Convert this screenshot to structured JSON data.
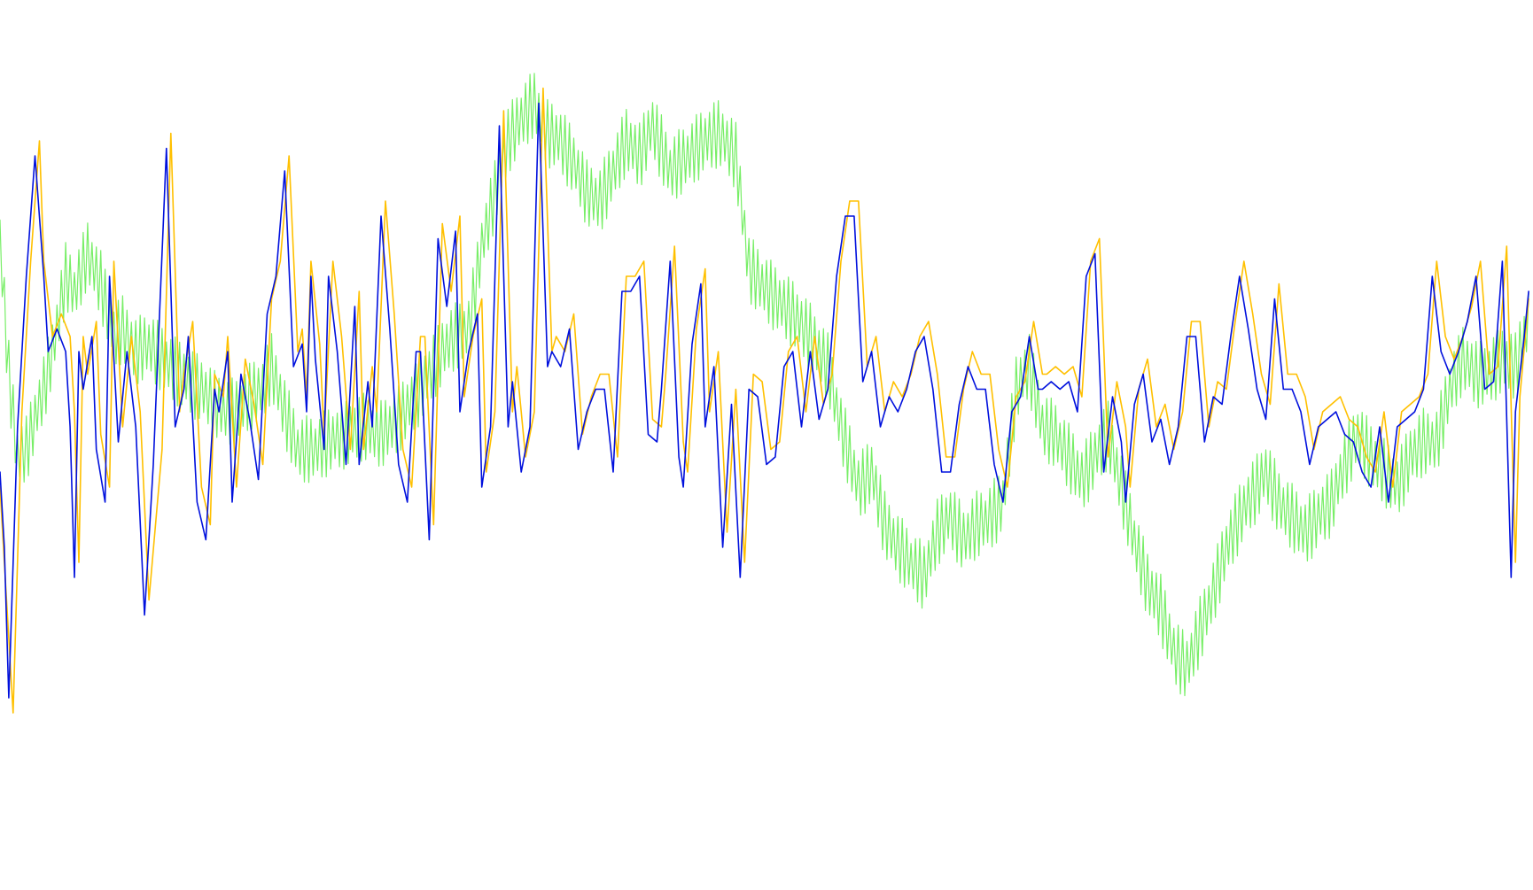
{
  "chart_data": {
    "type": "line",
    "title": "",
    "xlabel": "",
    "ylabel": "",
    "grid": false,
    "legend": "none",
    "xlim": [
      0,
      350
    ],
    "ylim": [
      0,
      100
    ],
    "series": [
      {
        "color": "#77ee66",
        "stroke_width": 1.2,
        "noise": 4.5,
        "x": [
          0,
          2,
          4,
          6,
          8,
          10,
          12,
          15,
          17,
          20,
          23,
          26,
          28,
          31,
          34,
          37,
          39,
          41,
          43,
          46,
          49,
          52,
          54,
          57,
          60,
          62,
          65,
          68,
          72,
          75,
          79,
          83,
          87,
          91,
          95,
          99,
          102,
          104,
          107,
          110,
          113,
          116,
          119,
          122,
          125,
          128,
          131,
          134,
          137,
          140,
          143,
          146,
          149,
          153,
          157,
          161,
          164,
          168,
          171,
          174,
          177,
          181,
          185,
          189,
          192,
          196,
          199,
          202,
          205,
          208,
          211,
          214,
          217,
          220,
          223,
          226,
          229,
          232,
          235,
          238,
          241,
          244,
          247,
          250,
          253,
          256,
          259,
          262,
          265,
          268,
          271,
          274,
          277,
          280,
          283,
          286,
          289,
          292,
          295,
          298,
          301,
          304,
          307,
          310,
          313,
          316,
          319,
          322,
          325,
          328,
          331,
          334,
          337,
          340,
          343,
          346,
          349
        ],
        "y": [
          73,
          55,
          44,
          45,
          49,
          53,
          58,
          68,
          66,
          71,
          67,
          60,
          61,
          58,
          59,
          57,
          56,
          55,
          54,
          53,
          51,
          50,
          50,
          52,
          53,
          56,
          50,
          45,
          45,
          46,
          47,
          48,
          47,
          49,
          52,
          56,
          59,
          60,
          61,
          72,
          79,
          86,
          89,
          91,
          87,
          86,
          83,
          79,
          78,
          82,
          86,
          84,
          88,
          82,
          84,
          86,
          87,
          84,
          69,
          67,
          65,
          63,
          60,
          56,
          48,
          40,
          42,
          35,
          32,
          30,
          28,
          34,
          36,
          33,
          35,
          36,
          38,
          53,
          56,
          48,
          47,
          44,
          41,
          44,
          47,
          40,
          33,
          27,
          24,
          18,
          16,
          21,
          26,
          32,
          36,
          39,
          42,
          38,
          36,
          34,
          36,
          38,
          43,
          47,
          44,
          42,
          40,
          44,
          46,
          46,
          53,
          57,
          55,
          55,
          57,
          56,
          62
        ]
      },
      {
        "color": "#ffc000",
        "stroke_width": 1.6,
        "noise": 0,
        "x": [
          0,
          1,
          3,
          5,
          7,
          9,
          10,
          12,
          14,
          16,
          17,
          18,
          19,
          20,
          22,
          23,
          25,
          26,
          28,
          30,
          32,
          34,
          37,
          39,
          41,
          42,
          44,
          46,
          48,
          49,
          51,
          52,
          54,
          56,
          58,
          60,
          62,
          64,
          66,
          68,
          69,
          70,
          71,
          73,
          74,
          76,
          78,
          80,
          82,
          83,
          85,
          86,
          88,
          90,
          92,
          94,
          96,
          97,
          99,
          101,
          103,
          105,
          106,
          108,
          110,
          111,
          113,
          115,
          117,
          118,
          120,
          122,
          124,
          126,
          127,
          129,
          131,
          133,
          135,
          137,
          139,
          141,
          143,
          145,
          147,
          149,
          151,
          152,
          154,
          156,
          157,
          159,
          161,
          162,
          164,
          166,
          168,
          170,
          172,
          174,
          176,
          178,
          180,
          182,
          184,
          186,
          188,
          190,
          192,
          194,
          196,
          198,
          200,
          202,
          204,
          206,
          208,
          210,
          212,
          214,
          216,
          218,
          220,
          222,
          224,
          226,
          228,
          230,
          232,
          234,
          236,
          238,
          239,
          241,
          243,
          245,
          247,
          249,
          251,
          253,
          255,
          257,
          258,
          260,
          262,
          264,
          266,
          268,
          270,
          272,
          274,
          276,
          278,
          280,
          282,
          284,
          286,
          288,
          290,
          292,
          294,
          296,
          298,
          300,
          302,
          304,
          306,
          308,
          310,
          312,
          314,
          316,
          318,
          320,
          322,
          324,
          326,
          328,
          330,
          332,
          334,
          336,
          338,
          340,
          342,
          344,
          346,
          347,
          349
        ],
        "y": [
          40,
          30,
          10,
          50,
          70,
          86,
          70,
          60,
          63,
          60,
          50,
          30,
          60,
          55,
          62,
          47,
          40,
          70,
          48,
          60,
          50,
          25,
          45,
          87,
          50,
          55,
          62,
          40,
          35,
          55,
          52,
          60,
          40,
          57,
          51,
          43,
          65,
          70,
          84,
          58,
          61,
          52,
          70,
          59,
          47,
          70,
          60,
          45,
          66,
          45,
          56,
          50,
          78,
          63,
          45,
          40,
          60,
          60,
          35,
          75,
          66,
          76,
          52,
          60,
          65,
          42,
          50,
          90,
          50,
          56,
          44,
          50,
          93,
          58,
          60,
          58,
          63,
          47,
          52,
          55,
          55,
          44,
          68,
          68,
          70,
          49,
          48,
          55,
          72,
          46,
          42,
          61,
          69,
          50,
          58,
          34,
          53,
          30,
          55,
          54,
          45,
          46,
          58,
          60,
          50,
          60,
          51,
          55,
          70,
          78,
          78,
          56,
          60,
          50,
          54,
          52,
          55,
          60,
          62,
          55,
          44,
          44,
          53,
          58,
          55,
          55,
          45,
          40,
          52,
          54,
          62,
          55,
          55,
          56,
          55,
          56,
          52,
          70,
          73,
          44,
          54,
          48,
          40,
          53,
          57,
          48,
          51,
          45,
          50,
          62,
          62,
          48,
          54,
          53,
          62,
          70,
          63,
          55,
          51,
          67,
          55,
          55,
          52,
          45,
          50,
          51,
          52,
          49,
          48,
          44,
          42,
          50,
          40,
          50,
          51,
          52,
          55,
          70,
          60,
          57,
          60,
          64,
          70,
          55,
          56,
          72,
          30,
          52,
          65
        ]
      },
      {
        "color": "#0010dd",
        "stroke_width": 1.6,
        "noise": 0,
        "x": [
          0,
          1,
          2,
          4,
          6,
          8,
          10,
          11,
          13,
          15,
          16,
          17,
          18,
          19,
          21,
          22,
          24,
          25,
          27,
          29,
          31,
          33,
          35,
          38,
          40,
          42,
          43,
          45,
          47,
          49,
          50,
          52,
          53,
          55,
          57,
          59,
          61,
          63,
          65,
          67,
          69,
          70,
          71,
          72,
          74,
          75,
          77,
          79,
          81,
          82,
          84,
          85,
          87,
          89,
          91,
          93,
          95,
          96,
          98,
          100,
          102,
          104,
          105,
          107,
          109,
          110,
          112,
          114,
          116,
          117,
          119,
          121,
          123,
          125,
          126,
          128,
          130,
          132,
          134,
          136,
          138,
          140,
          142,
          144,
          146,
          148,
          150,
          151,
          153,
          155,
          156,
          158,
          160,
          161,
          163,
          165,
          167,
          169,
          171,
          173,
          175,
          177,
          179,
          181,
          183,
          185,
          187,
          189,
          191,
          193,
          195,
          197,
          199,
          201,
          203,
          205,
          207,
          209,
          211,
          213,
          215,
          217,
          219,
          221,
          223,
          225,
          227,
          229,
          231,
          233,
          235,
          237,
          238,
          240,
          242,
          244,
          246,
          248,
          250,
          252,
          254,
          256,
          257,
          259,
          261,
          263,
          265,
          267,
          269,
          271,
          273,
          275,
          277,
          279,
          281,
          283,
          285,
          287,
          289,
          291,
          293,
          295,
          297,
          299,
          301,
          303,
          305,
          307,
          309,
          311,
          313,
          315,
          317,
          319,
          321,
          323,
          325,
          327,
          329,
          331,
          333,
          335,
          337,
          339,
          341,
          343,
          345,
          346,
          348,
          349
        ],
        "y": [
          42,
          32,
          12,
          48,
          68,
          84,
          68,
          58,
          61,
          58,
          48,
          28,
          58,
          53,
          60,
          45,
          38,
          68,
          46,
          58,
          48,
          23,
          43,
          85,
          48,
          53,
          60,
          38,
          33,
          53,
          50,
          58,
          38,
          55,
          49,
          41,
          63,
          68,
          82,
          56,
          59,
          50,
          68,
          57,
          45,
          68,
          58,
          43,
          64,
          43,
          54,
          48,
          76,
          61,
          43,
          38,
          58,
          58,
          33,
          73,
          64,
          74,
          50,
          58,
          63,
          40,
          48,
          88,
          48,
          54,
          42,
          48,
          91,
          56,
          58,
          56,
          61,
          45,
          50,
          53,
          53,
          42,
          66,
          66,
          68,
          47,
          46,
          53,
          70,
          44,
          40,
          59,
          67,
          48,
          56,
          32,
          51,
          28,
          53,
          52,
          43,
          44,
          56,
          58,
          48,
          58,
          49,
          53,
          68,
          76,
          76,
          54,
          58,
          48,
          52,
          50,
          53,
          58,
          60,
          53,
          42,
          42,
          51,
          56,
          53,
          53,
          43,
          38,
          50,
          52,
          60,
          53,
          53,
          54,
          53,
          54,
          50,
          68,
          71,
          42,
          52,
          46,
          38,
          51,
          55,
          46,
          49,
          43,
          48,
          60,
          60,
          46,
          52,
          51,
          60,
          68,
          61,
          53,
          49,
          65,
          53,
          53,
          50,
          43,
          48,
          49,
          50,
          47,
          46,
          42,
          40,
          48,
          38,
          48,
          49,
          50,
          53,
          68,
          58,
          55,
          58,
          62,
          68,
          53,
          54,
          70,
          28,
          50,
          60,
          66
        ]
      }
    ]
  }
}
